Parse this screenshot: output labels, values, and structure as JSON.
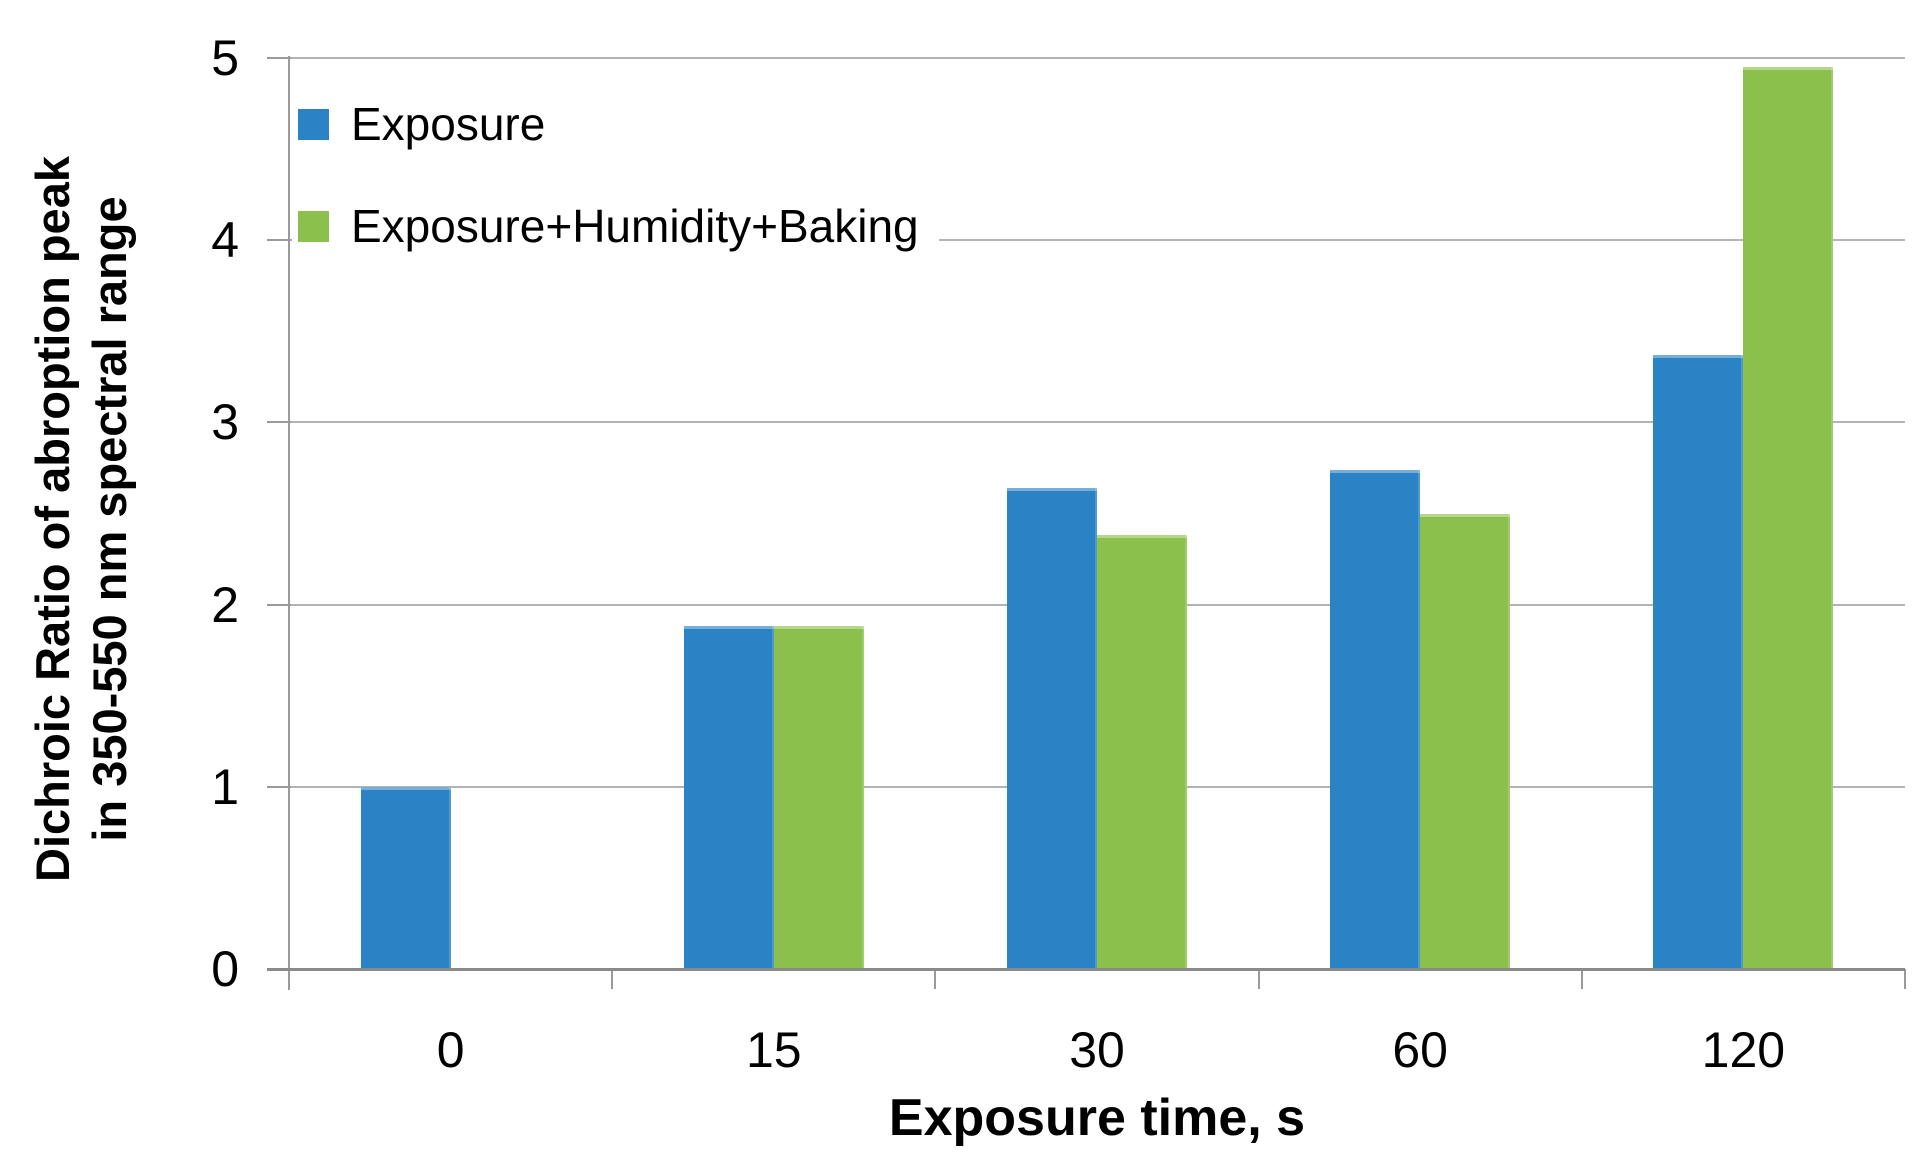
{
  "chart_data": {
    "type": "bar",
    "title": "",
    "categories": [
      "0",
      "15",
      "30",
      "60",
      "120"
    ],
    "series": [
      {
        "name": "Exposure",
        "color": "#2A83C5",
        "values": [
          1.0,
          1.88,
          2.64,
          2.74,
          3.37
        ]
      },
      {
        "name": "Exposure+Humidity+Baking",
        "color": "#8CC04D",
        "values": [
          null,
          1.88,
          2.38,
          2.5,
          4.95
        ]
      }
    ],
    "xlabel": "Exposure time, s",
    "ylabel_lines": [
      "Dichroic Ratio of abroption peak",
      "in 350-550 nm spectral range"
    ],
    "y_ticks": [
      "0",
      "1",
      "2",
      "3",
      "4",
      "5"
    ],
    "ylim": [
      0,
      5
    ],
    "grid": true,
    "legend_position": "inside-top-left",
    "colors": {
      "bar_blue": "#2A83C5",
      "bar_green": "#8CC04D",
      "gridline": "#B3B3B3",
      "axis": "#8A8A8A",
      "text": "#000000",
      "background": "#FFFFFF"
    }
  }
}
